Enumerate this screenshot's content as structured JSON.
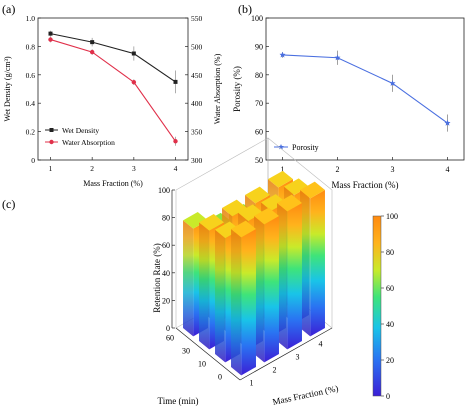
{
  "panels": {
    "a": {
      "label": "(a)"
    },
    "b": {
      "label": "(b)"
    },
    "c": {
      "label": "(c)"
    }
  },
  "chart_data": [
    {
      "type": "line",
      "panel": "(a)",
      "xlabel": "Mass Fraction (%)",
      "ylabel_left": "Wet Density (g/cm³)",
      "ylabel_right": "Water Absorption (%)",
      "x": [
        1,
        2,
        3,
        4
      ],
      "xlim": [
        0.7,
        4.3
      ],
      "ylim_left": [
        0,
        1.0
      ],
      "ylim_right": [
        300,
        550
      ],
      "yticks_left": [
        "0",
        "0.2",
        "0.4",
        "0.6",
        "0.8",
        "1.0"
      ],
      "yticks_right": [
        "300",
        "350",
        "400",
        "450",
        "500",
        "550"
      ],
      "xticks": [
        "1",
        "2",
        "3",
        "4"
      ],
      "series": [
        {
          "name": "Wet Density",
          "axis": "left",
          "color": "#222222",
          "marker": "square",
          "values": [
            0.89,
            0.83,
            0.75,
            0.55
          ],
          "errors": [
            0.02,
            0.03,
            0.05,
            0.08
          ]
        },
        {
          "name": "Water Absorption",
          "axis": "right",
          "color": "#e0304a",
          "marker": "circle",
          "values": [
            512,
            490,
            437,
            333
          ],
          "errors": [
            5,
            5,
            5,
            8
          ]
        }
      ],
      "legend": "bottom-left"
    },
    {
      "type": "line",
      "panel": "(b)",
      "xlabel": "Mass Fraction (%)",
      "ylabel": "Porosity (%)",
      "x": [
        1,
        2,
        3,
        4
      ],
      "xlim": [
        0.7,
        4.3
      ],
      "ylim": [
        50,
        100
      ],
      "yticks": [
        "50",
        "60",
        "70",
        "80",
        "90",
        "100"
      ],
      "xticks": [
        "1",
        "2",
        "3",
        "4"
      ],
      "series": [
        {
          "name": "Porosity",
          "color": "#4a6fe0",
          "marker": "star",
          "values": [
            87,
            86,
            77,
            63
          ],
          "errors": [
            1,
            2.5,
            3,
            3
          ]
        }
      ],
      "legend": "bottom-left"
    },
    {
      "type": "bar3d",
      "panel": "(c)",
      "xlabel": "Mass Fraction (%)",
      "ylabel": "Time (min)",
      "zlabel": "Retention Rate (%)",
      "x_categories": [
        "1",
        "2",
        "3",
        "4"
      ],
      "y_categories": [
        "0",
        "10",
        "30",
        "60"
      ],
      "zlim": [
        0,
        100
      ],
      "zticks": [
        "0",
        "20",
        "40",
        "60",
        "80",
        "100"
      ],
      "values": [
        [
          100,
          100,
          100,
          100
        ],
        [
          90,
          93,
          91,
          93
        ],
        [
          86,
          87,
          87,
          89
        ],
        [
          78,
          68,
          65,
          60
        ]
      ],
      "colorbar": {
        "min": 0,
        "max": 100,
        "ticks": [
          "0",
          "20",
          "40",
          "60",
          "80",
          "100"
        ]
      }
    }
  ]
}
